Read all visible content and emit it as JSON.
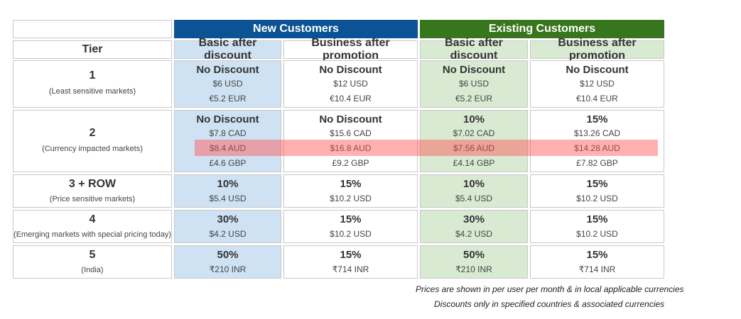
{
  "header": {
    "new_customers": "New Customers",
    "existing_customers": "Existing Customers"
  },
  "subheader": {
    "tier": "Tier",
    "col1": "Basic after discount",
    "col2": "Business after promotion",
    "col3": "Basic after discount",
    "col4": "Business after promotion"
  },
  "rows": [
    {
      "tier": "1",
      "desc": "(Least sensitive markets)",
      "cells": [
        [
          "No Discount",
          "$6 USD",
          "€5.2 EUR"
        ],
        [
          "No Discount",
          "$12 USD",
          "€10.4 EUR"
        ],
        [
          "No Discount",
          "$6 USD",
          "€5.2 EUR"
        ],
        [
          "No Discount",
          "$12 USD",
          "€10.4 EUR"
        ]
      ]
    },
    {
      "tier": "2",
      "desc": "(Currency impacted markets)",
      "cells": [
        [
          "No Discount",
          "$7.8 CAD",
          "$8.4 AUD",
          "£4.6 GBP"
        ],
        [
          "No Discount",
          "$15.6 CAD",
          "$16.8 AUD",
          "£9.2 GBP"
        ],
        [
          "10%",
          "$7.02 CAD",
          "$7.56 AUD",
          "£4.14 GBP"
        ],
        [
          "15%",
          "$13.26 CAD",
          "$14.28 AUD",
          "£7.82 GBP"
        ]
      ]
    },
    {
      "tier": "3 + ROW",
      "desc": "(Price sensitive markets)",
      "cells": [
        [
          "10%",
          "$5.4 USD"
        ],
        [
          "15%",
          "$10.2 USD"
        ],
        [
          "10%",
          "$5.4 USD"
        ],
        [
          "15%",
          "$10.2 USD"
        ]
      ]
    },
    {
      "tier": "4",
      "desc": "(Emerging markets with special pricing today)",
      "cells": [
        [
          "30%",
          "$4.2 USD"
        ],
        [
          "15%",
          "$10.2 USD"
        ],
        [
          "30%",
          "$4.2 USD"
        ],
        [
          "15%",
          "$10.2 USD"
        ]
      ]
    },
    {
      "tier": "5",
      "desc": "(India)",
      "cells": [
        [
          "50%",
          "₹210 INR"
        ],
        [
          "15%",
          "₹714 INR"
        ],
        [
          "50%",
          "₹210 INR"
        ],
        [
          "15%",
          "₹714 INR"
        ]
      ]
    }
  ],
  "notes": {
    "line1": "Prices are shown in per user per month & in local applicable currencies",
    "line2": "Discounts only in specified countries & associated currencies"
  },
  "colors": {
    "new_header": "#0b5394",
    "existing_header": "#38761d",
    "new_fill": "#cfe2f3",
    "existing_fill": "#d9ead3",
    "highlight": "#ff5050"
  }
}
